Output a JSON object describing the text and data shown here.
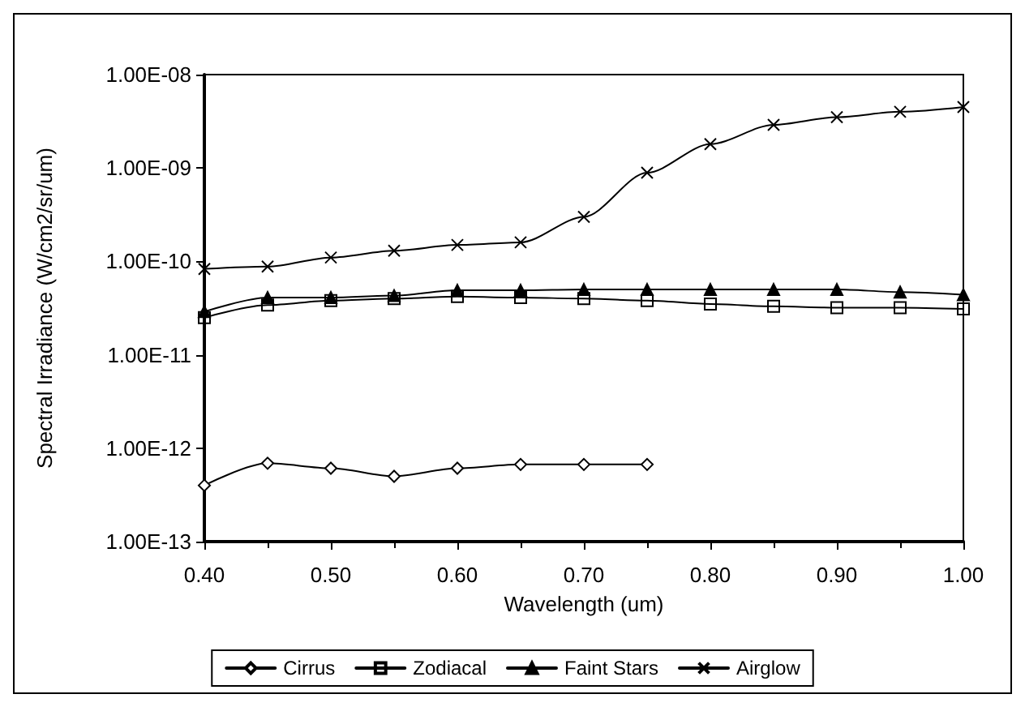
{
  "chart_data": {
    "type": "line",
    "xlabel": "Wavelength (um)",
    "ylabel": "Spectral Irradiance (W/cm2/sr/um)",
    "x": [
      0.4,
      0.45,
      0.5,
      0.55,
      0.6,
      0.65,
      0.7,
      0.75,
      0.8,
      0.85,
      0.9,
      0.95,
      1.0
    ],
    "series": [
      {
        "name": "Cirrus",
        "color": "#000000",
        "marker": "diamond",
        "values": [
          4e-13,
          6.9e-13,
          6.1e-13,
          5e-13,
          6.1e-13,
          6.7e-13,
          6.7e-13,
          6.7e-13,
          null,
          null,
          null,
          null,
          null
        ]
      },
      {
        "name": "Zodiacal",
        "color": "#000000",
        "marker": "square",
        "values": [
          2.5e-11,
          3.4e-11,
          3.8e-11,
          4e-11,
          4.2e-11,
          4.1e-11,
          4e-11,
          3.8e-11,
          3.5e-11,
          3.3e-11,
          3.2e-11,
          3.2e-11,
          3.1e-11
        ]
      },
      {
        "name": "Faint Stars",
        "color": "#000000",
        "marker": "triangle",
        "values": [
          2.9e-11,
          4.1e-11,
          4.1e-11,
          4.3e-11,
          4.9e-11,
          4.9e-11,
          5e-11,
          5e-11,
          5e-11,
          5e-11,
          5e-11,
          4.7e-11,
          4.4e-11
        ]
      },
      {
        "name": "Airglow",
        "color": "#000000",
        "marker": "cross",
        "values": [
          8.3e-11,
          8.8e-11,
          1.1e-10,
          1.3e-10,
          1.5e-10,
          1.6e-10,
          3e-10,
          8.9e-10,
          1.8e-09,
          2.9e-09,
          3.5e-09,
          4e-09,
          4.5e-09
        ]
      }
    ],
    "xlim": [
      0.4,
      1.0
    ],
    "xticks": [
      {
        "value": 0.4,
        "label": "0.40"
      },
      {
        "value": 0.5,
        "label": "0.50"
      },
      {
        "value": 0.6,
        "label": "0.60"
      },
      {
        "value": 0.7,
        "label": "0.70"
      },
      {
        "value": 0.8,
        "label": "0.80"
      },
      {
        "value": 0.9,
        "label": "0.90"
      },
      {
        "value": 1.0,
        "label": "1.00"
      }
    ],
    "ylim": [
      1e-13,
      1e-08
    ],
    "yticks": [
      {
        "value": 1e-13,
        "label": "1.00E-13"
      },
      {
        "value": 1e-12,
        "label": "1.00E-12"
      },
      {
        "value": 1e-11,
        "label": "1.00E-11"
      },
      {
        "value": 1e-10,
        "label": "1.00E-10"
      },
      {
        "value": 1e-09,
        "label": "1.00E-09"
      },
      {
        "value": 1e-08,
        "label": "1.00E-08"
      }
    ],
    "log": "y",
    "grid": false,
    "legend": "bottom"
  }
}
